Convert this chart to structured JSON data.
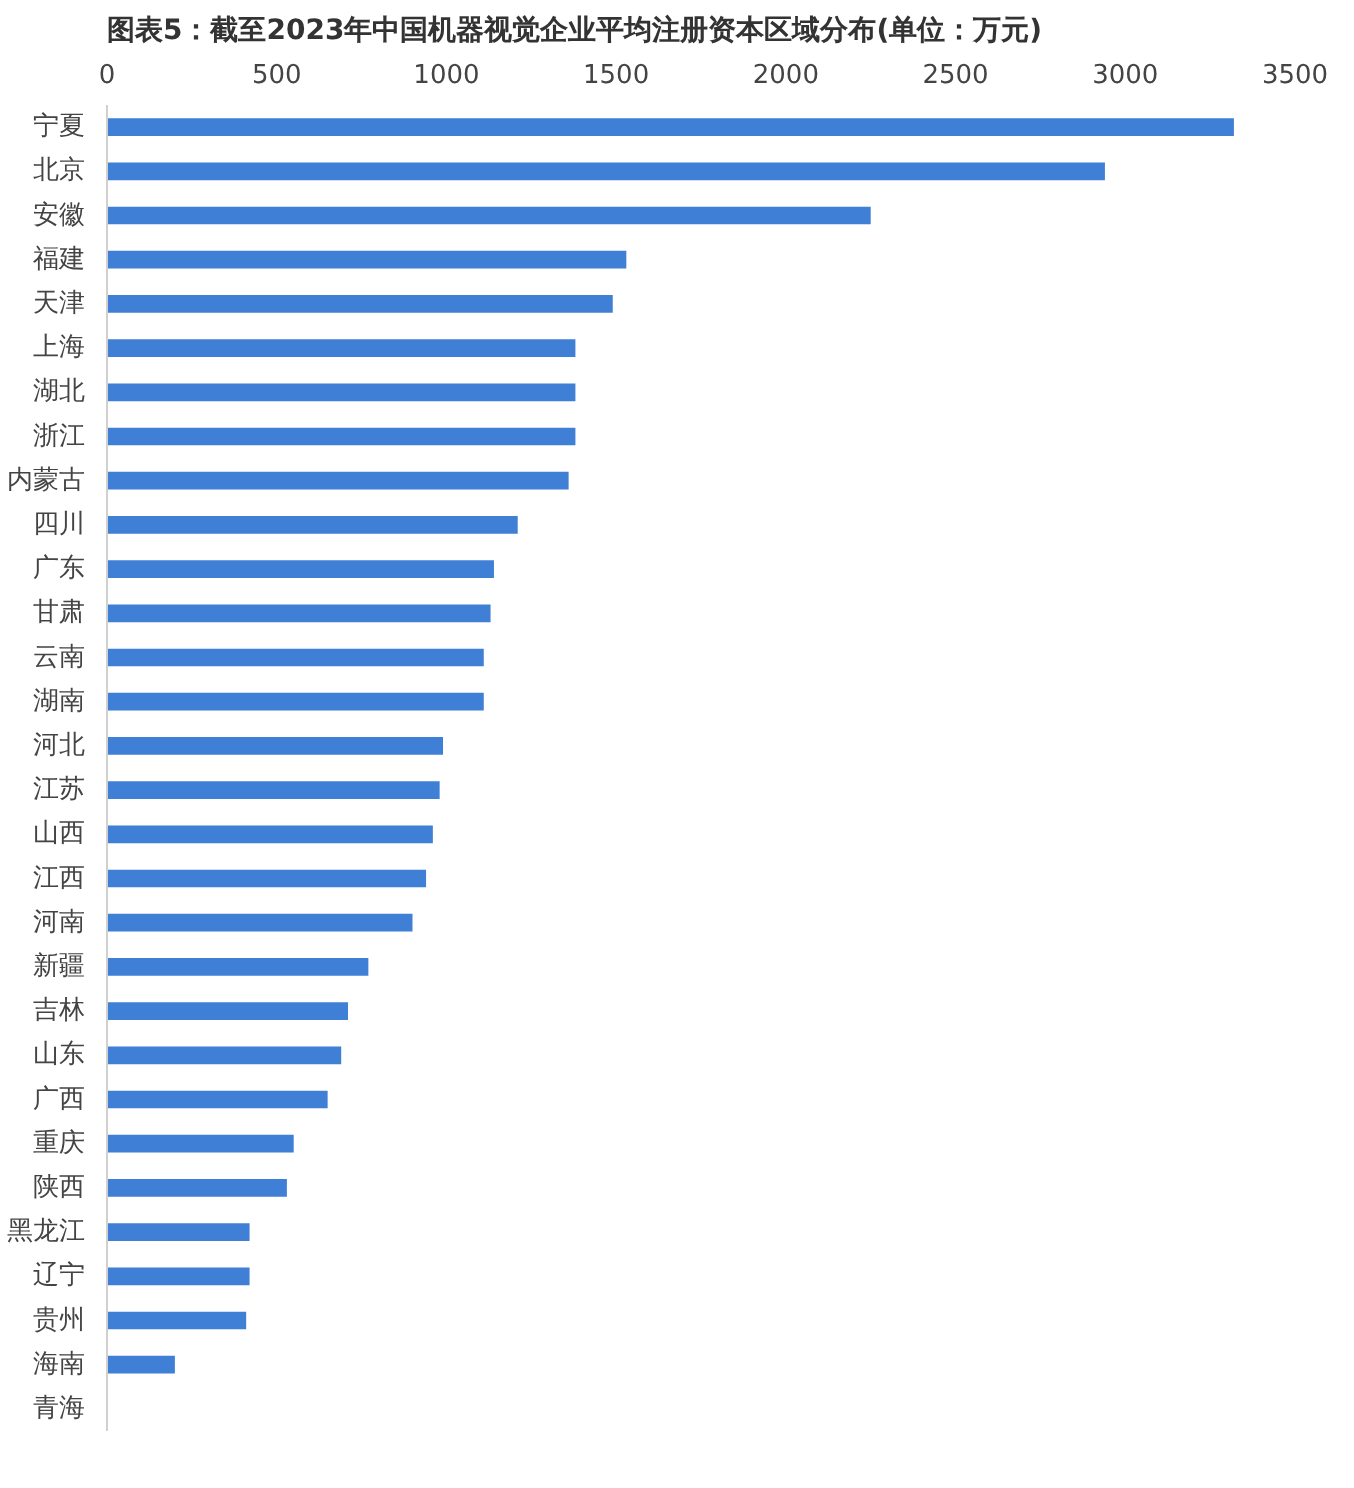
{
  "chart_data": {
    "type": "bar",
    "orientation": "horizontal",
    "title": "图表5：截至2023年中国机器视觉企业平均注册资本区域分布(单位：万元)",
    "categories": [
      "宁夏",
      "北京",
      "安徽",
      "福建",
      "天津",
      "上海",
      "湖北",
      "浙江",
      "内蒙古",
      "四川",
      "广东",
      "甘肃",
      "云南",
      "湖南",
      "河北",
      "江苏",
      "山西",
      "江西",
      "河南",
      "新疆",
      "吉林",
      "山东",
      "广西",
      "重庆",
      "陕西",
      "黑龙江",
      "辽宁",
      "贵州",
      "海南",
      "青海"
    ],
    "values": [
      3320,
      2940,
      2250,
      1530,
      1490,
      1380,
      1380,
      1380,
      1360,
      1210,
      1140,
      1130,
      1110,
      1110,
      990,
      980,
      960,
      940,
      900,
      770,
      710,
      690,
      650,
      550,
      530,
      420,
      420,
      410,
      200,
      0
    ],
    "color": "#3f7fd6",
    "xlim": [
      0,
      3500
    ],
    "xticks": [
      0,
      500,
      1000,
      1500,
      2000,
      2500,
      3000,
      3500
    ],
    "grid": false
  }
}
